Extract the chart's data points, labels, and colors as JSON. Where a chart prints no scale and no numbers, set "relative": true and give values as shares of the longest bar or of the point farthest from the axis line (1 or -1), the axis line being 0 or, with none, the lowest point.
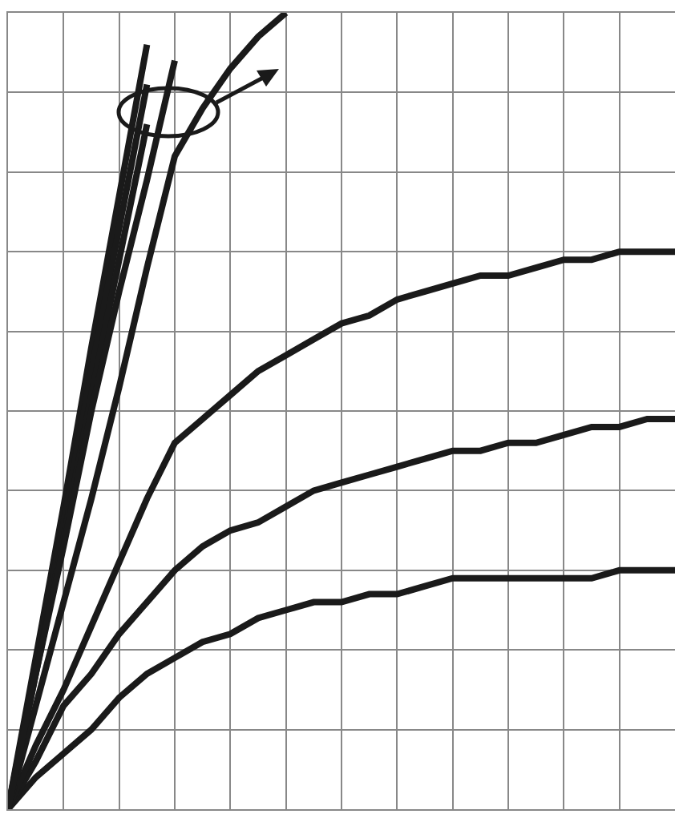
{
  "chart_data": {
    "type": "line",
    "relative": true,
    "categories": [
      null,
      null,
      null,
      null,
      null,
      null,
      null,
      null,
      null,
      null,
      null,
      null,
      null,
      null,
      null,
      null,
      null,
      null,
      null,
      null,
      null,
      null,
      null,
      null,
      null
    ],
    "tick_labels": false,
    "grid": true,
    "legend": false,
    "marker": "none",
    "line_style": "solid",
    "series": [
      {
        "color": "#1a1a1a",
        "values": [
          0,
          0.04,
          0.07,
          0.1,
          0.14,
          0.17,
          0.19,
          0.21,
          0.22,
          0.24,
          0.25,
          0.26,
          0.26,
          0.27,
          0.27,
          0.28,
          0.29,
          0.29,
          0.29,
          0.29,
          0.29,
          0.29,
          0.3,
          0.3,
          0.3
        ]
      },
      {
        "color": "#1a1a1a",
        "values": [
          0,
          0.06,
          0.13,
          0.17,
          0.22,
          0.26,
          0.3,
          0.33,
          0.35,
          0.36,
          0.38,
          0.4,
          0.41,
          0.42,
          0.43,
          0.44,
          0.45,
          0.45,
          0.46,
          0.46,
          0.47,
          0.48,
          0.48,
          0.49,
          0.49
        ]
      },
      {
        "color": "#1a1a1a",
        "values": [
          0,
          0.08,
          0.15,
          0.23,
          0.31,
          0.39,
          0.46,
          0.49,
          0.52,
          0.55,
          0.57,
          0.59,
          0.61,
          0.62,
          0.64,
          0.65,
          0.66,
          0.67,
          0.67,
          0.68,
          0.69,
          0.69,
          0.7,
          0.7,
          0.7
        ]
      },
      {
        "color": "#1a1a1a",
        "values": [
          0,
          0.13,
          0.26,
          0.39,
          0.53,
          0.68,
          0.82,
          0.88,
          0.93,
          0.97,
          1,
          null,
          null,
          null,
          null,
          null,
          null,
          null,
          null,
          null,
          null,
          null,
          null,
          null,
          null
        ]
      },
      {
        "color": "#1a1a1a",
        "values": [
          0,
          0.19,
          0.38,
          0.58,
          0.77,
          0.96,
          null,
          null,
          null,
          null,
          null,
          null,
          null,
          null,
          null,
          null,
          null,
          null,
          null,
          null,
          null,
          null,
          null,
          null,
          null
        ]
      },
      {
        "color": "#1a1a1a",
        "values": [
          0,
          0.18,
          0.36,
          0.55,
          0.73,
          0.91,
          null,
          null,
          null,
          null,
          null,
          null,
          null,
          null,
          null,
          null,
          null,
          null,
          null,
          null,
          null,
          null,
          null,
          null,
          null
        ]
      },
      {
        "color": "#1a1a1a",
        "values": [
          0,
          0.17,
          0.34,
          0.52,
          0.69,
          0.86,
          null,
          null,
          null,
          null,
          null,
          null,
          null,
          null,
          null,
          null,
          null,
          null,
          null,
          null,
          null,
          null,
          null,
          null,
          null
        ]
      },
      {
        "color": "#1a1a1a",
        "values": [
          0,
          0.17,
          0.33,
          0.5,
          0.65,
          0.79,
          0.94,
          null,
          null,
          null,
          null,
          null,
          null,
          null,
          null,
          null,
          null,
          null,
          null,
          null,
          null,
          null,
          null,
          null,
          null
        ]
      }
    ]
  }
}
